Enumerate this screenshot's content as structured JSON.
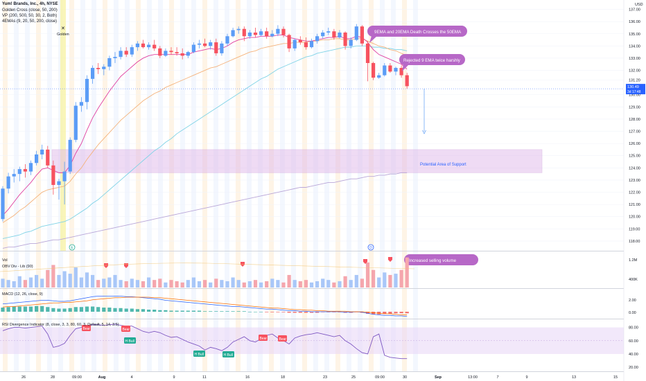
{
  "legend": {
    "symbol": "Yum! Brands, Inc., 4h, NYSE",
    "golden_cross": "Golden Cross (close, 50, 200)",
    "vp": "VP (200, 500, 50, 30, 2, Both)",
    "emas": "4EMAs (9, 20, 50, 200, close)"
  },
  "currency": "USD",
  "price_badge": {
    "price": "130.49",
    "countdown": "3d 17:48"
  },
  "annotations": {
    "golden": "Golden",
    "death_cross": "9EMA and 20EMA Death Crosses the 50EMA",
    "rejected": "Rejected 9 EMA twice harshly",
    "support": "Potential Area of Support",
    "volume": "Increased selling volume",
    "earnings_e": "E",
    "dividend_d": "D"
  },
  "indicators": {
    "vol": "Vol",
    "obv": "OBV Div - Lib (90)",
    "macd": "MACD (12, 26, close, 9)",
    "rsi": "RSI Divergence Indicator (8, close, 3, 3, 80, 60, 3, Default, 5, 14, 3.5)"
  },
  "signals": {
    "bear": "Bear",
    "hbull": "H Bull"
  },
  "price_axis": [
    "137.00",
    "136.00",
    "135.00",
    "134.00",
    "133.00",
    "132.00",
    "131.20",
    "130.00",
    "129.00",
    "128.00",
    "127.00",
    "126.00",
    "125.00",
    "124.00",
    "123.00",
    "122.00",
    "121.00",
    "120.00",
    "119.00",
    "118.00"
  ],
  "volume_axis": [
    "1.2M",
    "400K"
  ],
  "macd_axis": [
    "2.00",
    "0.00"
  ],
  "rsi_axis": [
    "80.00",
    "60.00",
    "40.00",
    "20.00"
  ],
  "time_axis": [
    "26",
    "28",
    "09:00",
    "Aug",
    "4",
    "9",
    "11",
    "16",
    "18",
    "23",
    "25",
    "09:00",
    "30",
    "Sep",
    "13:00",
    "7",
    "9",
    "13",
    "15"
  ],
  "colors": {
    "up": "#5b9cf6",
    "down": "#f7525f",
    "ema9": "#e040a0",
    "ema20": "#f5b27a",
    "ema50": "#7fd3e6",
    "ema200": "#b9a6d8",
    "zone": "#e0b8ea",
    "bubble": "#b768c7",
    "rsi": "#7e57c2"
  },
  "chart_data": {
    "type": "candlestick",
    "ylim": [
      117.2,
      137.6
    ],
    "candles": [
      [
        119.8,
        122.5,
        119.6,
        122.3
      ],
      [
        122.3,
        123.6,
        121.9,
        123.3
      ],
      [
        123.3,
        123.9,
        122.8,
        123.5
      ],
      [
        123.5,
        124.1,
        122.9,
        123.9
      ],
      [
        123.9,
        124.3,
        123.2,
        123.7
      ],
      [
        123.7,
        124.6,
        123.4,
        124.4
      ],
      [
        124.4,
        125.4,
        124.2,
        125.1
      ],
      [
        125.1,
        125.9,
        124.7,
        125.5
      ],
      [
        125.5,
        125.8,
        124.0,
        124.2
      ],
      [
        124.2,
        124.6,
        121.8,
        122.6
      ],
      [
        122.6,
        123.1,
        121.4,
        122.9
      ],
      [
        122.9,
        124.5,
        121.0,
        123.7
      ],
      [
        123.7,
        126.5,
        123.5,
        126.3
      ],
      [
        126.3,
        129.4,
        126.1,
        129.1
      ],
      [
        129.1,
        129.8,
        128.6,
        129.4
      ],
      [
        129.4,
        131.6,
        128.8,
        131.3
      ],
      [
        131.3,
        132.4,
        130.9,
        132.2
      ],
      [
        132.2,
        132.6,
        131.7,
        132.1
      ],
      [
        132.1,
        132.5,
        131.6,
        132.3
      ],
      [
        132.3,
        133.2,
        132.0,
        133.0
      ],
      [
        133.0,
        133.5,
        132.6,
        133.1
      ],
      [
        133.1,
        133.9,
        132.9,
        133.6
      ],
      [
        133.6,
        133.9,
        133.1,
        133.3
      ],
      [
        133.3,
        134.1,
        133.1,
        133.9
      ],
      [
        133.9,
        134.4,
        133.6,
        134.2
      ],
      [
        134.2,
        134.5,
        133.8,
        133.9
      ],
      [
        133.9,
        134.3,
        133.7,
        134.1
      ],
      [
        134.1,
        134.5,
        133.6,
        133.8
      ],
      [
        133.8,
        134.0,
        133.0,
        133.2
      ],
      [
        133.2,
        133.8,
        133.1,
        133.6
      ],
      [
        133.6,
        133.9,
        133.3,
        133.5
      ],
      [
        133.5,
        133.9,
        133.2,
        133.4
      ],
      [
        133.4,
        133.8,
        132.9,
        133.2
      ],
      [
        133.2,
        133.6,
        133.0,
        133.5
      ],
      [
        133.5,
        134.3,
        133.4,
        134.1
      ],
      [
        134.1,
        134.5,
        133.8,
        134.2
      ],
      [
        134.2,
        134.6,
        133.9,
        134.0
      ],
      [
        134.0,
        134.5,
        133.7,
        134.3
      ],
      [
        134.3,
        134.6,
        133.2,
        133.4
      ],
      [
        133.4,
        134.4,
        133.2,
        134.2
      ],
      [
        134.2,
        135.0,
        134.0,
        134.8
      ],
      [
        134.8,
        135.5,
        134.7,
        135.3
      ],
      [
        135.3,
        135.6,
        135.0,
        135.4
      ],
      [
        135.4,
        135.6,
        134.4,
        134.8
      ],
      [
        134.8,
        135.3,
        134.6,
        135.1
      ],
      [
        135.1,
        135.5,
        134.7,
        134.9
      ],
      [
        134.9,
        135.4,
        134.8,
        135.2
      ],
      [
        135.2,
        135.5,
        134.6,
        134.8
      ],
      [
        134.8,
        135.3,
        134.7,
        135.0
      ],
      [
        135.0,
        135.7,
        134.8,
        135.4
      ],
      [
        135.4,
        135.6,
        134.7,
        134.9
      ],
      [
        134.9,
        135.0,
        133.5,
        133.8
      ],
      [
        133.8,
        134.6,
        133.6,
        134.5
      ],
      [
        134.5,
        134.8,
        134.1,
        134.3
      ],
      [
        134.3,
        134.7,
        133.7,
        133.9
      ],
      [
        133.9,
        134.6,
        133.8,
        134.4
      ],
      [
        134.4,
        135.0,
        134.2,
        134.8
      ],
      [
        134.8,
        135.3,
        134.6,
        135.1
      ],
      [
        135.1,
        135.5,
        134.9,
        135.2
      ],
      [
        135.2,
        135.4,
        134.5,
        134.7
      ],
      [
        134.7,
        135.3,
        134.6,
        135.1
      ],
      [
        135.1,
        135.2,
        133.7,
        134.0
      ],
      [
        134.0,
        134.7,
        133.8,
        134.5
      ],
      [
        134.5,
        135.8,
        134.4,
        135.6
      ],
      [
        135.6,
        135.7,
        134.0,
        134.2
      ],
      [
        134.2,
        134.4,
        131.1,
        132.6
      ],
      [
        132.6,
        132.7,
        131.2,
        131.4
      ],
      [
        131.4,
        131.8,
        131.3,
        131.6
      ],
      [
        131.6,
        132.6,
        131.5,
        132.4
      ],
      [
        132.4,
        132.6,
        131.8,
        131.9
      ],
      [
        131.9,
        132.3,
        131.6,
        132.2
      ],
      [
        132.2,
        132.4,
        131.4,
        131.6
      ],
      [
        131.6,
        131.8,
        130.5,
        130.7
      ]
    ],
    "ema9": [
      120.1,
      120.6,
      121.2,
      121.8,
      122.3,
      122.8,
      123.4,
      123.9,
      124.0,
      123.8,
      123.6,
      123.6,
      124.2,
      125.2,
      126.0,
      127.1,
      128.1,
      128.9,
      129.6,
      130.3,
      130.9,
      131.5,
      131.9,
      132.3,
      132.7,
      133.0,
      133.2,
      133.3,
      133.3,
      133.3,
      133.3,
      133.3,
      133.3,
      133.3,
      133.5,
      133.6,
      133.7,
      133.8,
      133.7,
      133.8,
      134.0,
      134.3,
      134.5,
      134.6,
      134.7,
      134.7,
      134.8,
      134.8,
      134.8,
      134.9,
      134.9,
      134.7,
      134.6,
      134.5,
      134.4,
      134.4,
      134.5,
      134.6,
      134.7,
      134.7,
      134.8,
      134.6,
      134.6,
      134.8,
      134.7,
      134.3,
      133.7,
      133.3,
      133.1,
      132.9,
      132.7,
      132.5,
      132.1
    ],
    "ema20": [
      119.5,
      119.8,
      120.1,
      120.5,
      120.8,
      121.2,
      121.6,
      122.0,
      122.2,
      122.3,
      122.4,
      122.5,
      122.9,
      123.5,
      124.0,
      124.7,
      125.3,
      125.9,
      126.4,
      126.9,
      127.4,
      127.9,
      128.3,
      128.7,
      129.1,
      129.5,
      129.8,
      130.1,
      130.3,
      130.6,
      130.8,
      131.0,
      131.2,
      131.4,
      131.6,
      131.8,
      132.0,
      132.2,
      132.3,
      132.5,
      132.7,
      132.9,
      133.1,
      133.3,
      133.5,
      133.6,
      133.8,
      133.9,
      134.0,
      134.1,
      134.2,
      134.2,
      134.3,
      134.3,
      134.3,
      134.4,
      134.4,
      134.5,
      134.5,
      134.6,
      134.6,
      134.5,
      134.5,
      134.6,
      134.6,
      134.4,
      134.2,
      134.0,
      133.9,
      133.7,
      133.6,
      133.4,
      133.2
    ],
    "ema50": [
      118.2,
      118.3,
      118.4,
      118.5,
      118.7,
      118.8,
      119.0,
      119.2,
      119.3,
      119.4,
      119.5,
      119.6,
      119.8,
      120.1,
      120.4,
      120.7,
      121.1,
      121.4,
      121.8,
      122.2,
      122.6,
      123.0,
      123.4,
      123.8,
      124.2,
      124.6,
      125.0,
      125.4,
      125.7,
      126.1,
      126.4,
      126.8,
      127.1,
      127.4,
      127.7,
      128.0,
      128.3,
      128.6,
      128.9,
      129.2,
      129.5,
      129.8,
      130.1,
      130.4,
      130.7,
      131.0,
      131.3,
      131.5,
      131.8,
      132.1,
      132.3,
      132.5,
      132.7,
      132.9,
      133.1,
      133.2,
      133.4,
      133.5,
      133.6,
      133.7,
      133.8,
      133.9,
      133.9,
      134.0,
      134.0,
      134.0,
      133.9,
      133.9,
      133.8,
      133.8,
      133.7,
      133.7,
      133.6
    ],
    "ema200": [
      117.4,
      117.5,
      117.5,
      117.6,
      117.7,
      117.8,
      117.8,
      117.9,
      118.0,
      118.1,
      118.1,
      118.2,
      118.3,
      118.4,
      118.5,
      118.6,
      118.7,
      118.8,
      118.9,
      119.0,
      119.1,
      119.2,
      119.3,
      119.4,
      119.5,
      119.6,
      119.7,
      119.8,
      119.9,
      120.0,
      120.1,
      120.2,
      120.3,
      120.4,
      120.5,
      120.6,
      120.7,
      120.8,
      120.9,
      121.0,
      121.1,
      121.2,
      121.3,
      121.4,
      121.5,
      121.6,
      121.7,
      121.8,
      121.9,
      122.0,
      122.1,
      122.2,
      122.3,
      122.4,
      122.4,
      122.5,
      122.6,
      122.7,
      122.8,
      122.8,
      122.9,
      123.0,
      123.1,
      123.1,
      123.2,
      123.3,
      123.3,
      123.4,
      123.4,
      123.5,
      123.5,
      123.6,
      123.6
    ],
    "support_zone": [
      123.6,
      125.5
    ],
    "current_price": 130.49,
    "volume": [
      0.35,
      0.3,
      0.25,
      0.45,
      0.3,
      0.4,
      0.5,
      0.35,
      0.7,
      0.9,
      0.5,
      0.65,
      0.55,
      0.8,
      0.4,
      0.6,
      0.5,
      0.3,
      0.35,
      0.4,
      0.5,
      0.3,
      0.25,
      0.35,
      0.3,
      0.25,
      0.4,
      0.3,
      0.35,
      0.2,
      0.3,
      0.25,
      0.2,
      0.3,
      0.4,
      0.25,
      0.3,
      0.2,
      0.35,
      0.3,
      0.25,
      0.4,
      0.3,
      0.2,
      0.25,
      0.3,
      0.2,
      0.25,
      0.35,
      0.3,
      0.2,
      0.5,
      0.3,
      0.25,
      0.3,
      0.2,
      0.25,
      0.35,
      0.3,
      0.2,
      0.25,
      0.45,
      0.3,
      0.5,
      0.35,
      1.0,
      0.7,
      0.4,
      0.6,
      0.5,
      0.55,
      0.7,
      1.2
    ],
    "volume_ylim": [
      0,
      1.3
    ],
    "macd_hist": [
      0.8,
      0.9,
      1.0,
      1.0,
      1.0,
      1.0,
      1.1,
      1.1,
      0.9,
      0.7,
      0.6,
      0.6,
      0.7,
      0.9,
      0.9,
      1.0,
      1.0,
      0.9,
      0.8,
      0.8,
      0.7,
      0.7,
      0.6,
      0.6,
      0.5,
      0.5,
      0.4,
      0.4,
      0.3,
      0.3,
      0.2,
      0.2,
      0.2,
      0.2,
      0.2,
      0.2,
      0.1,
      0.1,
      0.1,
      0.1,
      0.1,
      0.1,
      0.1,
      0.1,
      0.0,
      0.0,
      0.0,
      -0.1,
      -0.1,
      -0.1,
      -0.1,
      -0.2,
      -0.2,
      -0.2,
      -0.2,
      -0.2,
      -0.2,
      -0.1,
      -0.1,
      -0.1,
      -0.1,
      -0.2,
      -0.2,
      -0.1,
      -0.2,
      -0.4,
      -0.5,
      -0.5,
      -0.4,
      -0.4,
      -0.3,
      -0.3,
      -0.3
    ],
    "macd_line": [
      1.5,
      1.6,
      1.7,
      1.8,
      1.9,
      2.0,
      2.1,
      2.2,
      2.2,
      2.1,
      2.0,
      2.0,
      2.1,
      2.3,
      2.5,
      2.7,
      2.9,
      3.0,
      3.0,
      3.0,
      3.0,
      3.0,
      2.9,
      2.9,
      2.8,
      2.7,
      2.6,
      2.5,
      2.4,
      2.2,
      2.1,
      2.0,
      1.9,
      1.8,
      1.7,
      1.6,
      1.5,
      1.4,
      1.3,
      1.2,
      1.1,
      1.0,
      1.0,
      0.9,
      0.8,
      0.7,
      0.6,
      0.5,
      0.5,
      0.4,
      0.3,
      0.2,
      0.2,
      0.1,
      0.1,
      0.0,
      0.0,
      0.0,
      0.0,
      0.0,
      0.0,
      -0.1,
      -0.1,
      0.0,
      -0.1,
      -0.3,
      -0.5,
      -0.6,
      -0.7,
      -0.7,
      -0.8,
      -0.8,
      -0.9
    ],
    "macd_signal": [
      0.9,
      1.0,
      1.0,
      1.1,
      1.2,
      1.3,
      1.4,
      1.5,
      1.6,
      1.7,
      1.7,
      1.8,
      1.8,
      1.9,
      2.0,
      2.1,
      2.3,
      2.4,
      2.5,
      2.6,
      2.7,
      2.7,
      2.8,
      2.8,
      2.8,
      2.8,
      2.8,
      2.7,
      2.7,
      2.6,
      2.5,
      2.4,
      2.3,
      2.2,
      2.1,
      2.0,
      1.9,
      1.8,
      1.7,
      1.6,
      1.5,
      1.4,
      1.3,
      1.2,
      1.1,
      1.0,
      0.9,
      0.8,
      0.7,
      0.7,
      0.6,
      0.5,
      0.4,
      0.4,
      0.3,
      0.3,
      0.2,
      0.2,
      0.1,
      0.1,
      0.1,
      0.1,
      0.0,
      0.0,
      0.0,
      -0.1,
      -0.2,
      -0.3,
      -0.4,
      -0.4,
      -0.5,
      -0.6,
      -0.6
    ],
    "macd_ylim": [
      -1.2,
      4.0
    ],
    "rsi": [
      75,
      78,
      80,
      80,
      79,
      80,
      81,
      82,
      70,
      50,
      52,
      56,
      68,
      78,
      80,
      82,
      84,
      84,
      83,
      84,
      85,
      83,
      82,
      82,
      78,
      74,
      72,
      74,
      72,
      68,
      65,
      66,
      62,
      58,
      55,
      52,
      46,
      50,
      48,
      45,
      50,
      58,
      62,
      66,
      60,
      58,
      63,
      68,
      70,
      64,
      60,
      55,
      64,
      67,
      69,
      70,
      72,
      70,
      68,
      66,
      68,
      60,
      55,
      48,
      42,
      40,
      66,
      70,
      38,
      35,
      34,
      33,
      33
    ],
    "rsi_ylim": [
      15,
      90
    ],
    "rsi_band": [
      40,
      80
    ]
  }
}
